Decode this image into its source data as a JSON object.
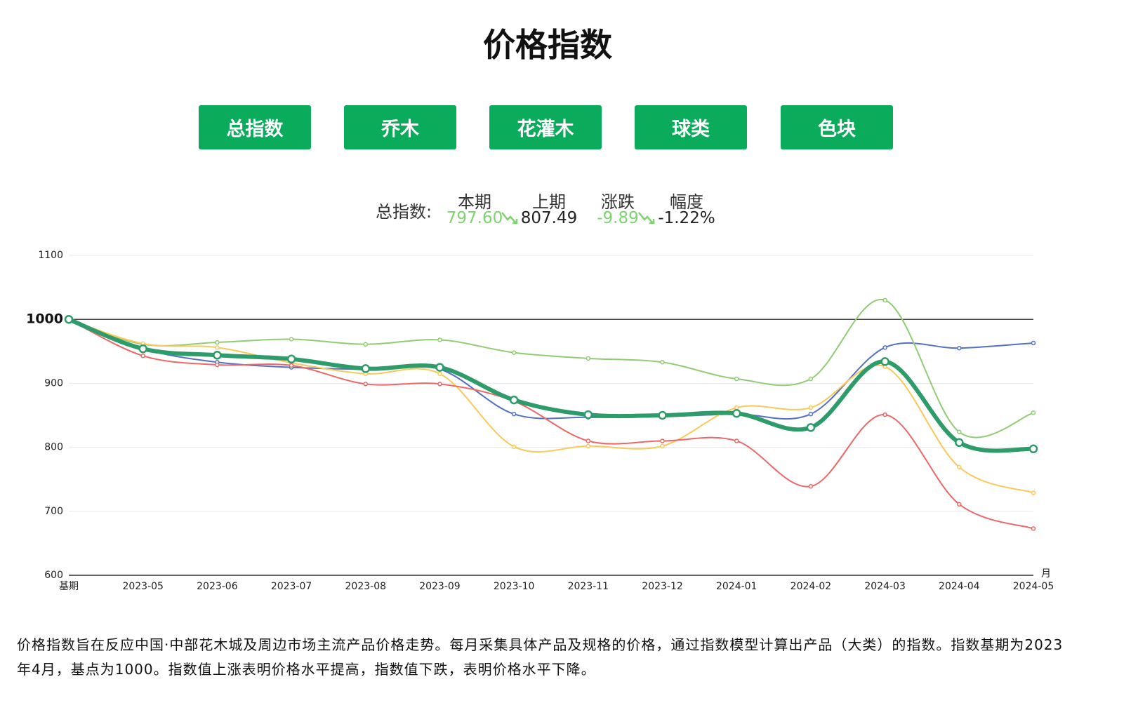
{
  "header": {
    "title": "价格指数"
  },
  "tabs": [
    "总指数",
    "乔木",
    "花灌木",
    "球类",
    "色块"
  ],
  "summary": {
    "label": "总指数:",
    "headers": [
      "本期",
      "上期",
      "涨跌",
      "幅度"
    ],
    "values": [
      "797.60",
      "807.49",
      "-9.89",
      "-1.22%"
    ]
  },
  "chart_data": {
    "type": "line",
    "categories": [
      "基期",
      "2023-05",
      "2023-06",
      "2023-07",
      "2023-08",
      "2023-09",
      "2023-10",
      "2023-11",
      "2023-12",
      "2024-01",
      "2024-02",
      "2024-03",
      "2024-04",
      "2024-05"
    ],
    "x_label": "月",
    "ylim": [
      600,
      1100
    ],
    "yticks": [
      600,
      700,
      800,
      900,
      1000,
      1100
    ],
    "reference_line": 1000,
    "grid": true,
    "smooth": true,
    "series": [
      {
        "color": "#5470c6",
        "values": [
          1000,
          954,
          933,
          925,
          922,
          922,
          852,
          847,
          848,
          852,
          852,
          956,
          955,
          963
        ]
      },
      {
        "color": "#91cc75",
        "values": [
          1000,
          961,
          964,
          969,
          961,
          968,
          948,
          939,
          933,
          907,
          907,
          1030,
          824,
          854
        ]
      },
      {
        "color": "#fac858",
        "values": [
          1000,
          962,
          956,
          932,
          915,
          915,
          801,
          802,
          802,
          862,
          862,
          926,
          769,
          729
        ]
      },
      {
        "color": "#ee6666",
        "values": [
          1000,
          943,
          929,
          928,
          899,
          899,
          872,
          810,
          810,
          810,
          739,
          851,
          711,
          673
        ]
      },
      {
        "color": "#2e9c6a",
        "width": 6,
        "values": [
          1000,
          954,
          944,
          938,
          923,
          925,
          874,
          851,
          850,
          853,
          831,
          934,
          807.49,
          797.6
        ]
      }
    ]
  },
  "description": "价格指数旨在反应中国·中部花木城及周边市场主流产品价格走势。每月采集具体产品及规格的价格，通过指数模型计算出产品（大类）的指数。指数基期为2023年4月，基点为1000。指数值上涨表明价格水平提高，指数值下跌，表明价格水平下降。"
}
